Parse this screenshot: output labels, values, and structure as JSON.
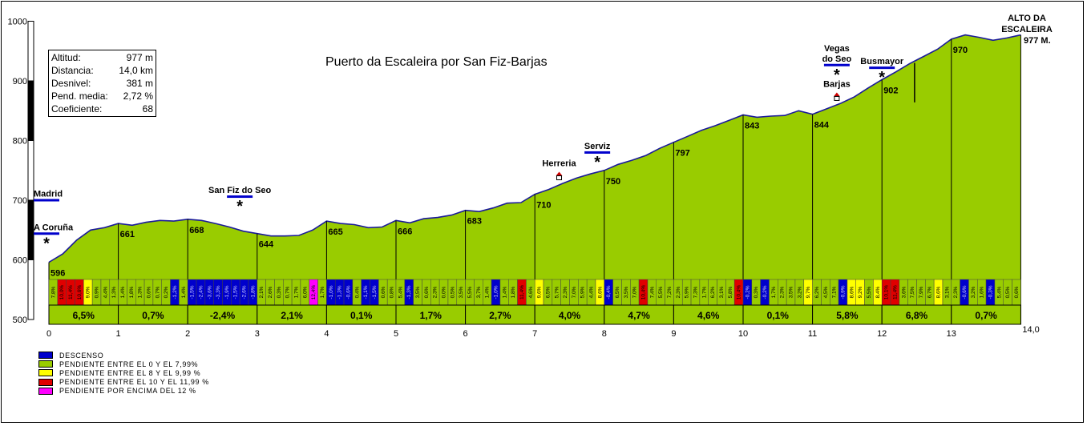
{
  "title": "Puerto da Escaleira  por San Fiz-Barjas",
  "info": [
    {
      "label": "Altitud:",
      "value": "977 m"
    },
    {
      "label": "Distancia:",
      "value": "14,0 km"
    },
    {
      "label": "Desnivel:",
      "value": "381 m"
    },
    {
      "label": "Pend. media:",
      "value": "2,72 %"
    },
    {
      "label": "Coeficiente:",
      "value": "68"
    }
  ],
  "colors": {
    "descenso": "#0000cc",
    "pendiente_0_7": "#99cc00",
    "pendiente_8_9": "#ffff00",
    "pendiente_10_11": "#e00000",
    "pendiente_12": "#ff00ff"
  },
  "legend": [
    {
      "label": "DESCENSO",
      "color": "#0000cc"
    },
    {
      "label": "PENDIENTE ENTRE EL 0 Y EL 7,99%",
      "color": "#99cc00"
    },
    {
      "label": "PENDIENTE ENTRE EL 8 Y EL 9,99 %",
      "color": "#ffff00"
    },
    {
      "label": "PENDIENTE ENTRE EL 10 Y EL 11,99 %",
      "color": "#e00000"
    },
    {
      "label": "PENDIENTE POR ENCIMA DEL 12 %",
      "color": "#ff00ff"
    }
  ],
  "chart_data": {
    "type": "area",
    "title": "Puerto da Escaleira  por San Fiz-Barjas",
    "xlabel": "",
    "ylabel": "",
    "xlim": [
      0,
      14
    ],
    "ylim": [
      500,
      1000
    ],
    "y_ticks": [
      "500",
      "600",
      "700",
      "800",
      "900",
      "1000"
    ],
    "x_ticks": [
      "0",
      "1",
      "2",
      "3",
      "4",
      "5",
      "6",
      "7",
      "8",
      "9",
      "10",
      "11",
      "12",
      "13"
    ],
    "x_end_label": "14,0",
    "profile": [
      [
        0,
        596
      ],
      [
        0.2,
        610
      ],
      [
        0.4,
        633
      ],
      [
        0.6,
        650
      ],
      [
        0.8,
        654
      ],
      [
        1,
        661
      ],
      [
        1.2,
        658
      ],
      [
        1.4,
        663
      ],
      [
        1.6,
        666
      ],
      [
        1.8,
        665
      ],
      [
        2,
        668
      ],
      [
        2.2,
        666
      ],
      [
        2.4,
        661
      ],
      [
        2.6,
        655
      ],
      [
        2.8,
        648
      ],
      [
        3,
        644
      ],
      [
        3.2,
        640
      ],
      [
        3.4,
        640
      ],
      [
        3.6,
        641
      ],
      [
        3.8,
        650
      ],
      [
        4,
        665
      ],
      [
        4.2,
        661
      ],
      [
        4.4,
        659
      ],
      [
        4.6,
        654
      ],
      [
        4.8,
        655
      ],
      [
        5,
        666
      ],
      [
        5.2,
        662
      ],
      [
        5.4,
        669
      ],
      [
        5.6,
        671
      ],
      [
        5.8,
        675
      ],
      [
        6,
        683
      ],
      [
        6.2,
        681
      ],
      [
        6.4,
        687
      ],
      [
        6.6,
        695
      ],
      [
        6.8,
        696
      ],
      [
        7,
        710
      ],
      [
        7.2,
        718
      ],
      [
        7.4,
        728
      ],
      [
        7.6,
        737
      ],
      [
        7.8,
        744
      ],
      [
        8,
        750
      ],
      [
        8.2,
        760
      ],
      [
        8.4,
        767
      ],
      [
        8.6,
        775
      ],
      [
        8.8,
        787
      ],
      [
        9,
        797
      ],
      [
        9.2,
        807
      ],
      [
        9.4,
        817
      ],
      [
        9.6,
        825
      ],
      [
        9.8,
        834
      ],
      [
        10,
        843
      ],
      [
        10.2,
        839
      ],
      [
        10.4,
        841
      ],
      [
        10.6,
        842
      ],
      [
        10.8,
        850
      ],
      [
        11,
        844
      ],
      [
        11.2,
        853
      ],
      [
        11.4,
        862
      ],
      [
        11.6,
        873
      ],
      [
        11.8,
        888
      ],
      [
        12,
        902
      ],
      [
        12.2,
        915
      ],
      [
        12.4,
        929
      ],
      [
        12.6,
        941
      ],
      [
        12.8,
        953
      ],
      [
        13,
        970
      ],
      [
        13.2,
        977
      ],
      [
        13.4,
        973
      ],
      [
        13.6,
        968
      ],
      [
        13.8,
        972
      ],
      [
        14,
        977
      ]
    ],
    "km_points": [
      {
        "km": 0,
        "alt": "596"
      },
      {
        "km": 1,
        "alt": "661"
      },
      {
        "km": 2,
        "alt": "668"
      },
      {
        "km": 3,
        "alt": "644"
      },
      {
        "km": 4,
        "alt": "665"
      },
      {
        "km": 5,
        "alt": "666"
      },
      {
        "km": 6,
        "alt": "683"
      },
      {
        "km": 7,
        "alt": "710"
      },
      {
        "km": 8,
        "alt": "750"
      },
      {
        "km": 9,
        "alt": "797"
      },
      {
        "km": 10,
        "alt": "843"
      },
      {
        "km": 11,
        "alt": "844"
      },
      {
        "km": 12,
        "alt": "902"
      },
      {
        "km": 13,
        "alt": "970"
      }
    ],
    "km_gradients": [
      "6,5%",
      "0,7%",
      "-2,4%",
      "2,1%",
      "0,1%",
      "1,7%",
      "2,7%",
      "4,0%",
      "4,7%",
      "4,6%",
      "0,1%",
      "5,8%",
      "6,8%",
      "0,7%"
    ],
    "segments": [
      [
        7.8,
        10.0,
        11.4,
        10.6,
        9.0,
        0.9,
        4.4,
        1.3
      ],
      [
        1.4,
        1.8,
        1.3,
        0.6,
        0.7,
        0.2,
        -1.2,
        1.4
      ],
      [
        -1.5,
        -2.4,
        -3.6,
        -3.3,
        -1.9,
        -1.5,
        -2.6,
        -1.8
      ],
      [
        2.1,
        2.6,
        0.3,
        0.7,
        1.7,
        6.0,
        12.4,
        1.7
      ],
      [
        -1.0,
        -1.3,
        -0.6,
        0.4,
        -1.1,
        -1.5,
        0.6,
        0.8
      ],
      [
        5.4,
        -1.3,
        3.5,
        0.6,
        2.3,
        0.0,
        0.5,
        3.5
      ],
      [
        5.5,
        3.7,
        1.4,
        -1.0,
        1.4,
        1.8,
        11.4,
        4.6
      ],
      [
        9.6,
        6.5,
        5.7,
        2.3,
        7.0,
        5.9,
        4.4,
        8.6
      ],
      [
        -0.4,
        6.5,
        3.5,
        7.0,
        10.4,
        7.4,
        5.5,
        7.2
      ],
      [
        2.3,
        5.9,
        7.3,
        1.7,
        6.2,
        3.1,
        5.8,
        10.4
      ],
      [
        -0.2,
        0.3,
        -0.2,
        1.7,
        2.3,
        3.5,
        3.2,
        9.7
      ],
      [
        6.2,
        4.5,
        7.1,
        -0.9,
        8.6,
        9.2,
        5.5,
        8.4
      ],
      [
        10.1,
        11.4,
        3.6,
        7.5,
        7.9,
        6.7,
        8.6,
        3.1
      ],
      [
        2.3,
        -0.6,
        3.2,
        1.6,
        -0.3,
        5.4,
        0.5,
        0.6
      ]
    ],
    "places": [
      {
        "name": "Madrid",
        "km": 0,
        "label_alt": 706,
        "arrow": true
      },
      {
        "name": "A Coruña",
        "km": 0,
        "label_alt": 650,
        "arrow": true,
        "star": true
      },
      {
        "name": "San Fiz do Seo",
        "km": 2.75,
        "label_alt": 712,
        "arrow": true,
        "star": true
      },
      {
        "name": "Herreria",
        "km": 7.35,
        "label_alt": 757,
        "house": true
      },
      {
        "name": "Serviz",
        "km": 7.9,
        "label_alt": 786,
        "arrow": true,
        "star": true
      },
      {
        "name": "Vegas do Seo",
        "km": 11.35,
        "label_alt": 950,
        "arrow": true,
        "star": true
      },
      {
        "name": "Barjas",
        "km": 11.35,
        "label_alt": 890,
        "house": true
      },
      {
        "name": "Busmayor",
        "km": 12.0,
        "label_alt": 928,
        "arrow": true,
        "star": true
      },
      {
        "name": "ALTO DA ESCALEIRA",
        "km": 14.0,
        "label_alt": 1000,
        "suffix": "977 M."
      }
    ]
  }
}
